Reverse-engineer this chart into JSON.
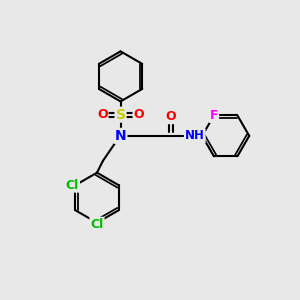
{
  "bg_color": "#e8e8e8",
  "bond_color": "#000000",
  "bond_width": 1.5,
  "atom_colors": {
    "S": "#cccc00",
    "O": "#ff0000",
    "N": "#0000ff",
    "Cl": "#00bb00",
    "F": "#ff00ff",
    "NH": "#0000ff"
  },
  "font_size": 9,
  "fig_size": [
    3.0,
    3.0
  ],
  "dpi": 100
}
